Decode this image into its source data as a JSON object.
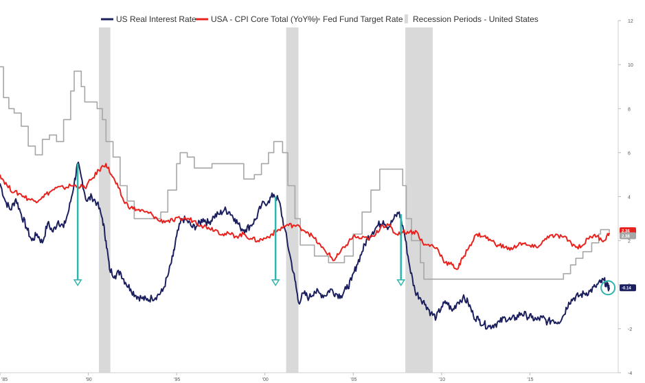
{
  "chart_data": {
    "type": "line",
    "title": "",
    "xlabel": "",
    "ylabel": "",
    "x_range": [
      1985,
      2020
    ],
    "ylim": [
      -4,
      12
    ],
    "grid": false,
    "legend": "top",
    "x_ticks": [
      {
        "value": 1985,
        "label": "'85"
      },
      {
        "value": 1990,
        "label": "'90"
      },
      {
        "value": 1995,
        "label": "'95"
      },
      {
        "value": 2000,
        "label": "'00"
      },
      {
        "value": 2005,
        "label": "'05"
      },
      {
        "value": 2010,
        "label": "'10"
      },
      {
        "value": 2015,
        "label": "'15"
      }
    ],
    "y_ticks": [
      {
        "value": 12,
        "label": "12"
      },
      {
        "value": 10,
        "label": "10"
      },
      {
        "value": 8,
        "label": "8"
      },
      {
        "value": 6,
        "label": "6"
      },
      {
        "value": 4,
        "label": "4"
      },
      {
        "value": 2,
        "label": "2"
      },
      {
        "value": 0,
        "label": "0"
      },
      {
        "value": -2,
        "label": "-2"
      },
      {
        "value": -4,
        "label": "-4"
      }
    ],
    "recessions": [
      {
        "start": 1990.6,
        "end": 1991.25
      },
      {
        "start": 2001.2,
        "end": 2001.9
      },
      {
        "start": 2007.95,
        "end": 2009.5
      }
    ],
    "series": [
      {
        "name": "US Real Interest Rate",
        "color": "#1b1f5e",
        "last_value_label": "-0.14",
        "points": [
          [
            1985.0,
            4.6
          ],
          [
            1985.3,
            3.8
          ],
          [
            1985.6,
            3.4
          ],
          [
            1985.9,
            3.9
          ],
          [
            1986.2,
            3.2
          ],
          [
            1986.5,
            2.6
          ],
          [
            1986.8,
            2.0
          ],
          [
            1987.1,
            2.3
          ],
          [
            1987.4,
            1.9
          ],
          [
            1987.7,
            2.8
          ],
          [
            1988.0,
            2.4
          ],
          [
            1988.3,
            2.9
          ],
          [
            1988.6,
            2.6
          ],
          [
            1988.9,
            3.4
          ],
          [
            1989.2,
            4.6
          ],
          [
            1989.4,
            5.5
          ],
          [
            1989.6,
            4.9
          ],
          [
            1989.9,
            3.8
          ],
          [
            1990.2,
            4.0
          ],
          [
            1990.5,
            3.7
          ],
          [
            1990.8,
            3.0
          ],
          [
            1991.0,
            2.0
          ],
          [
            1991.2,
            0.7
          ],
          [
            1991.5,
            0.4
          ],
          [
            1991.8,
            0.6
          ],
          [
            1992.1,
            0.1
          ],
          [
            1992.4,
            -0.2
          ],
          [
            1992.7,
            -0.5
          ],
          [
            1993.0,
            -0.6
          ],
          [
            1993.3,
            -0.7
          ],
          [
            1993.6,
            -0.6
          ],
          [
            1993.9,
            -0.5
          ],
          [
            1994.2,
            -0.3
          ],
          [
            1994.5,
            0.4
          ],
          [
            1994.8,
            1.3
          ],
          [
            1995.0,
            2.2
          ],
          [
            1995.3,
            3.0
          ],
          [
            1995.6,
            2.9
          ],
          [
            1995.9,
            2.6
          ],
          [
            1996.2,
            2.7
          ],
          [
            1996.5,
            3.0
          ],
          [
            1996.8,
            2.8
          ],
          [
            1997.1,
            3.1
          ],
          [
            1997.4,
            3.2
          ],
          [
            1997.7,
            3.4
          ],
          [
            1998.0,
            3.3
          ],
          [
            1998.3,
            3.0
          ],
          [
            1998.6,
            2.6
          ],
          [
            1998.9,
            2.5
          ],
          [
            1999.2,
            2.7
          ],
          [
            1999.5,
            3.0
          ],
          [
            1999.8,
            3.6
          ],
          [
            2000.2,
            3.8
          ],
          [
            2000.5,
            4.1
          ],
          [
            2000.8,
            3.8
          ],
          [
            2001.1,
            2.6
          ],
          [
            2001.4,
            1.4
          ],
          [
            2001.7,
            0.2
          ],
          [
            2001.9,
            -0.8
          ],
          [
            2002.2,
            -0.4
          ],
          [
            2002.5,
            -0.6
          ],
          [
            2002.8,
            -0.3
          ],
          [
            2003.1,
            -0.4
          ],
          [
            2003.4,
            -0.5
          ],
          [
            2003.7,
            -0.2
          ],
          [
            2004.0,
            -0.4
          ],
          [
            2004.3,
            -0.5
          ],
          [
            2004.6,
            -0.2
          ],
          [
            2004.9,
            0.2
          ],
          [
            2005.2,
            0.9
          ],
          [
            2005.5,
            1.5
          ],
          [
            2005.8,
            2.1
          ],
          [
            2006.1,
            2.4
          ],
          [
            2006.4,
            2.7
          ],
          [
            2006.7,
            2.9
          ],
          [
            2007.0,
            2.6
          ],
          [
            2007.3,
            3.0
          ],
          [
            2007.6,
            3.3
          ],
          [
            2007.9,
            2.3
          ],
          [
            2008.2,
            0.8
          ],
          [
            2008.5,
            -0.3
          ],
          [
            2008.8,
            -0.6
          ],
          [
            2009.1,
            -0.9
          ],
          [
            2009.4,
            -1.3
          ],
          [
            2009.7,
            -1.5
          ],
          [
            2010.0,
            -1.0
          ],
          [
            2010.3,
            -0.8
          ],
          [
            2010.6,
            -1.2
          ],
          [
            2010.9,
            -0.8
          ],
          [
            2011.2,
            -0.6
          ],
          [
            2011.5,
            -0.8
          ],
          [
            2011.8,
            -1.4
          ],
          [
            2012.1,
            -1.6
          ],
          [
            2012.4,
            -1.8
          ],
          [
            2012.7,
            -1.9
          ],
          [
            2013.0,
            -1.8
          ],
          [
            2013.3,
            -1.7
          ],
          [
            2013.6,
            -1.5
          ],
          [
            2013.9,
            -1.6
          ],
          [
            2014.2,
            -1.5
          ],
          [
            2014.5,
            -1.3
          ],
          [
            2014.8,
            -1.4
          ],
          [
            2015.1,
            -1.5
          ],
          [
            2015.4,
            -1.6
          ],
          [
            2015.7,
            -1.5
          ],
          [
            2016.0,
            -1.7
          ],
          [
            2016.3,
            -1.6
          ],
          [
            2016.6,
            -1.7
          ],
          [
            2016.9,
            -1.4
          ],
          [
            2017.2,
            -0.8
          ],
          [
            2017.5,
            -0.6
          ],
          [
            2017.8,
            -0.5
          ],
          [
            2018.1,
            -0.4
          ],
          [
            2018.4,
            -0.3
          ],
          [
            2018.7,
            -0.1
          ],
          [
            2019.0,
            0.1
          ],
          [
            2019.2,
            0.2
          ],
          [
            2019.4,
            -0.1
          ],
          [
            2019.5,
            -0.14
          ]
        ]
      },
      {
        "name": "USA - CPI Core Total (YoY%)",
        "color": "#e8211c",
        "last_value_label": "2.36",
        "points": [
          [
            1985.0,
            5.0
          ],
          [
            1985.4,
            4.5
          ],
          [
            1985.8,
            4.2
          ],
          [
            1986.2,
            4.1
          ],
          [
            1986.6,
            3.9
          ],
          [
            1987.0,
            3.8
          ],
          [
            1987.4,
            4.0
          ],
          [
            1987.8,
            4.2
          ],
          [
            1988.2,
            4.4
          ],
          [
            1988.6,
            4.4
          ],
          [
            1989.0,
            4.5
          ],
          [
            1989.4,
            4.5
          ],
          [
            1989.8,
            4.4
          ],
          [
            1990.2,
            4.8
          ],
          [
            1990.6,
            5.2
          ],
          [
            1991.0,
            5.5
          ],
          [
            1991.3,
            5.0
          ],
          [
            1991.7,
            4.4
          ],
          [
            1992.0,
            3.8
          ],
          [
            1992.4,
            3.5
          ],
          [
            1992.8,
            3.4
          ],
          [
            1993.2,
            3.3
          ],
          [
            1993.6,
            3.2
          ],
          [
            1994.0,
            2.9
          ],
          [
            1994.4,
            2.9
          ],
          [
            1994.8,
            2.9
          ],
          [
            1995.2,
            3.0
          ],
          [
            1995.6,
            3.0
          ],
          [
            1996.0,
            2.9
          ],
          [
            1996.4,
            2.7
          ],
          [
            1996.8,
            2.6
          ],
          [
            1997.2,
            2.5
          ],
          [
            1997.6,
            2.3
          ],
          [
            1998.0,
            2.3
          ],
          [
            1998.4,
            2.2
          ],
          [
            1998.8,
            2.3
          ],
          [
            1999.2,
            2.1
          ],
          [
            1999.6,
            2.0
          ],
          [
            2000.0,
            2.1
          ],
          [
            2000.4,
            2.3
          ],
          [
            2000.8,
            2.5
          ],
          [
            2001.2,
            2.7
          ],
          [
            2001.6,
            2.7
          ],
          [
            2002.0,
            2.6
          ],
          [
            2002.4,
            2.4
          ],
          [
            2002.8,
            2.1
          ],
          [
            2003.2,
            1.7
          ],
          [
            2003.6,
            1.4
          ],
          [
            2003.9,
            1.1
          ],
          [
            2004.2,
            1.4
          ],
          [
            2004.6,
            1.8
          ],
          [
            2005.0,
            2.2
          ],
          [
            2005.4,
            2.1
          ],
          [
            2005.8,
            2.1
          ],
          [
            2006.2,
            2.2
          ],
          [
            2006.6,
            2.7
          ],
          [
            2007.0,
            2.7
          ],
          [
            2007.4,
            2.3
          ],
          [
            2007.8,
            2.4
          ],
          [
            2008.2,
            2.4
          ],
          [
            2008.6,
            2.4
          ],
          [
            2009.0,
            1.8
          ],
          [
            2009.4,
            1.8
          ],
          [
            2009.8,
            1.6
          ],
          [
            2010.2,
            1.0
          ],
          [
            2010.6,
            0.9
          ],
          [
            2010.9,
            0.7
          ],
          [
            2011.2,
            1.2
          ],
          [
            2011.6,
            1.8
          ],
          [
            2012.0,
            2.3
          ],
          [
            2012.4,
            2.2
          ],
          [
            2012.8,
            2.0
          ],
          [
            2013.2,
            1.8
          ],
          [
            2013.6,
            1.7
          ],
          [
            2014.0,
            1.6
          ],
          [
            2014.4,
            1.9
          ],
          [
            2014.8,
            1.8
          ],
          [
            2015.2,
            1.7
          ],
          [
            2015.6,
            1.8
          ],
          [
            2016.0,
            2.2
          ],
          [
            2016.4,
            2.2
          ],
          [
            2016.8,
            2.2
          ],
          [
            2017.2,
            2.0
          ],
          [
            2017.6,
            1.7
          ],
          [
            2018.0,
            1.8
          ],
          [
            2018.4,
            2.2
          ],
          [
            2018.8,
            2.2
          ],
          [
            2019.2,
            2.0
          ],
          [
            2019.5,
            2.36
          ]
        ]
      },
      {
        "name": "Fed Fund Target Rate",
        "color": "#a6a6a6",
        "last_value_label": "2.38",
        "points": [
          [
            1985.0,
            9.9
          ],
          [
            1985.2,
            8.5
          ],
          [
            1985.5,
            8.0
          ],
          [
            1985.8,
            7.8
          ],
          [
            1986.2,
            7.2
          ],
          [
            1986.6,
            6.3
          ],
          [
            1987.0,
            5.9
          ],
          [
            1987.4,
            6.6
          ],
          [
            1987.8,
            6.8
          ],
          [
            1988.2,
            6.5
          ],
          [
            1988.6,
            7.5
          ],
          [
            1989.0,
            8.8
          ],
          [
            1989.2,
            9.7
          ],
          [
            1989.6,
            9.0
          ],
          [
            1989.8,
            8.3
          ],
          [
            1990.5,
            8.0
          ],
          [
            1990.8,
            7.5
          ],
          [
            1991.0,
            6.5
          ],
          [
            1991.4,
            5.8
          ],
          [
            1991.8,
            4.5
          ],
          [
            1992.2,
            3.8
          ],
          [
            1992.6,
            3.0
          ],
          [
            1993.0,
            3.0
          ],
          [
            1993.8,
            3.0
          ],
          [
            1994.1,
            3.3
          ],
          [
            1994.5,
            4.3
          ],
          [
            1995.0,
            5.5
          ],
          [
            1995.2,
            6.0
          ],
          [
            1995.6,
            5.8
          ],
          [
            1996.0,
            5.3
          ],
          [
            1997.0,
            5.5
          ],
          [
            1998.0,
            5.5
          ],
          [
            1998.8,
            4.8
          ],
          [
            1999.4,
            5.0
          ],
          [
            1999.8,
            5.5
          ],
          [
            2000.2,
            6.0
          ],
          [
            2000.5,
            6.5
          ],
          [
            2001.0,
            6.0
          ],
          [
            2001.3,
            4.5
          ],
          [
            2001.7,
            3.0
          ],
          [
            2002.0,
            1.8
          ],
          [
            2002.8,
            1.3
          ],
          [
            2003.6,
            1.0
          ],
          [
            2004.5,
            1.3
          ],
          [
            2005.0,
            2.3
          ],
          [
            2005.5,
            3.3
          ],
          [
            2006.0,
            4.3
          ],
          [
            2006.5,
            5.25
          ],
          [
            2007.6,
            5.25
          ],
          [
            2007.8,
            4.5
          ],
          [
            2008.0,
            3.0
          ],
          [
            2008.3,
            2.0
          ],
          [
            2008.8,
            1.0
          ],
          [
            2009.0,
            0.25
          ],
          [
            2015.9,
            0.25
          ],
          [
            2016.9,
            0.5
          ],
          [
            2017.3,
            0.9
          ],
          [
            2017.6,
            1.2
          ],
          [
            2018.0,
            1.5
          ],
          [
            2018.5,
            1.9
          ],
          [
            2018.9,
            2.3
          ],
          [
            2019.0,
            2.5
          ],
          [
            2019.4,
            2.5
          ],
          [
            2019.5,
            2.38
          ]
        ]
      }
    ],
    "legend_entries": [
      {
        "label": "US Real Interest Rate",
        "color": "#1b1f5e",
        "marker": "line"
      },
      {
        "label": "USA - CPI Core Total (YoY%)",
        "color": "#e8211c",
        "marker": "line"
      },
      {
        "label": "Fed Fund Target Rate",
        "color": "#a6a6a6",
        "marker": "line"
      },
      {
        "label": "Recession Periods - United States",
        "color": "#d9d9d9",
        "marker": "box"
      }
    ],
    "annotations": [
      {
        "type": "down-arrow",
        "x": 1989.4,
        "from_y": 5.5,
        "to_y": 0.0,
        "color": "#2fb5ab"
      },
      {
        "type": "down-arrow",
        "x": 2000.6,
        "from_y": 4.0,
        "to_y": 0.0,
        "color": "#2fb5ab"
      },
      {
        "type": "down-arrow",
        "x": 2007.7,
        "from_y": 3.2,
        "to_y": 0.0,
        "color": "#2fb5ab"
      },
      {
        "type": "circle",
        "x": 2019.5,
        "y": -0.14,
        "color": "#2fb5ab"
      }
    ]
  }
}
